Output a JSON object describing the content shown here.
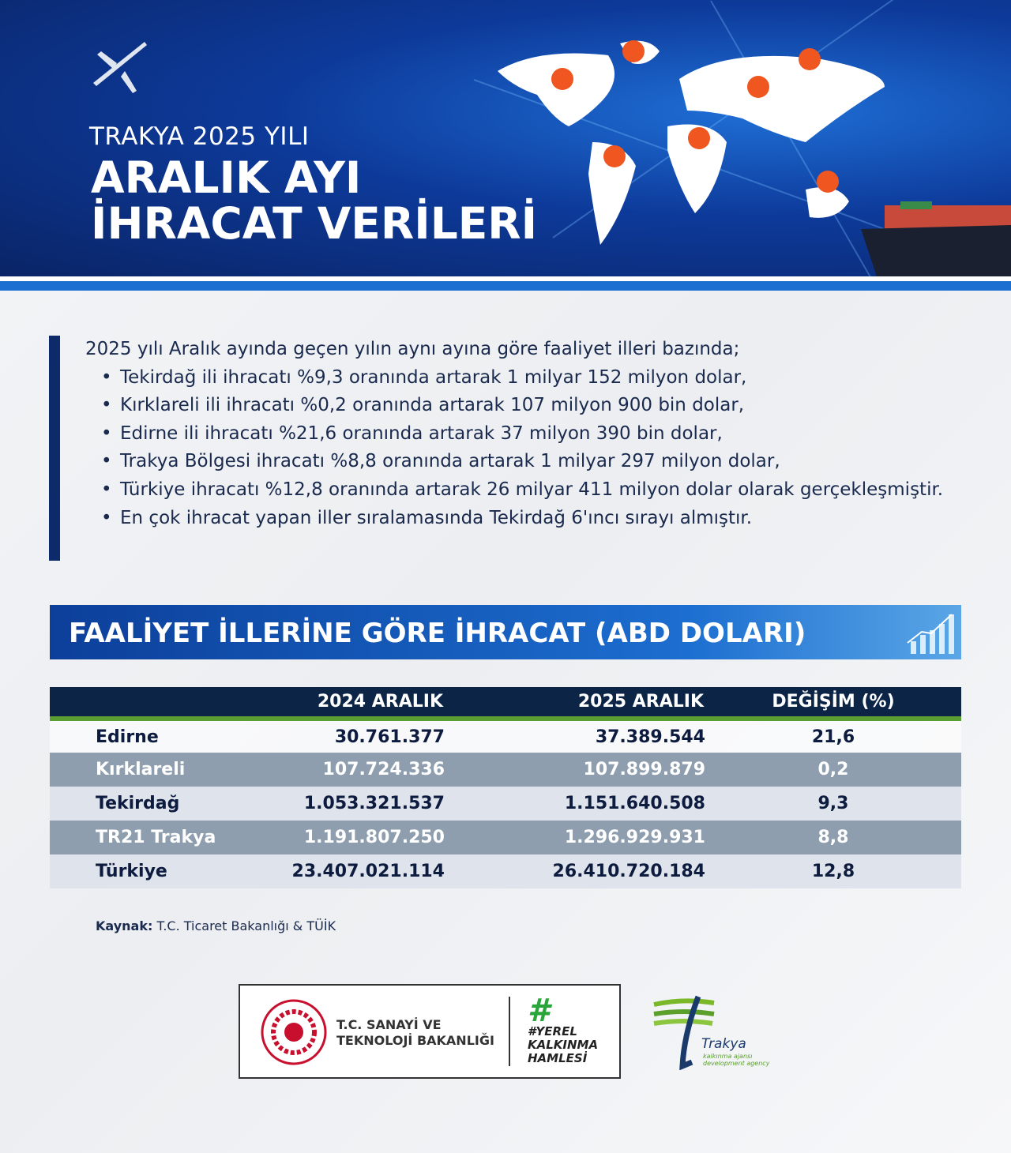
{
  "header": {
    "subtitle": "TRAKYA 2025 YILI",
    "title_line1": "ARALIK AYI",
    "title_line2": "İHRACAT VERİLERİ"
  },
  "intro": {
    "lead": "2025 yılı Aralık ayında geçen yılın aynı ayına göre faaliyet illeri bazında;",
    "bullets": [
      "Tekirdağ ili ihracatı %9,3 oranında artarak 1 milyar 152 milyon dolar,",
      "Kırklareli ili ihracatı %0,2 oranında artarak 107 milyon 900 bin dolar,",
      "Edirne ili ihracatı %21,6 oranında artarak 37 milyon 390 bin dolar,",
      "Trakya Bölgesi ihracatı %8,8 oranında artarak 1 milyar 297 milyon dolar,",
      "Türkiye ihracatı %12,8 oranında artarak 26 milyar 411 milyon dolar olarak gerçekleşmiştir.",
      "En çok ihracat yapan iller sıralamasında Tekirdağ 6'ıncı sırayı almıştır."
    ]
  },
  "section_title": "FAALİYET İLLERİNE GÖRE İHRACAT (ABD DOLARI)",
  "table": {
    "headers": [
      "",
      "2024 ARALIK",
      "2025 ARALIK",
      "DEĞİŞİM (%)"
    ],
    "rows": [
      [
        "Edirne",
        "30.761.377",
        "37.389.544",
        "21,6"
      ],
      [
        "Kırklareli",
        "107.724.336",
        "107.899.879",
        "0,2"
      ],
      [
        "Tekirdağ",
        "1.053.321.537",
        "1.151.640.508",
        "9,3"
      ],
      [
        "TR21 Trakya",
        "1.191.807.250",
        "1.296.929.931",
        "8,8"
      ],
      [
        "Türkiye",
        "23.407.021.114",
        "26.410.720.184",
        "12,8"
      ]
    ]
  },
  "source": {
    "label": "Kaynak:",
    "text": " T.C. Ticaret Bakanlığı & TÜİK"
  },
  "logos": {
    "ministry": "T.C. SANAYİ VE TEKNOLOJİ BAKANLIĞI",
    "ministry_l1": "T.C. SANAYİ VE",
    "ministry_l2": "TEKNOLOJİ BAKANLIĞI",
    "campaign": "#YEREL KALKINMA HAMLESİ",
    "agency": "Trakya",
    "agency_sub1": "kalkınma ajansı",
    "agency_sub2": "development agency"
  },
  "colors": {
    "navy": "#0c2547",
    "accent_blue": "#1b6fd1",
    "green": "#5a9e32",
    "pin": "#f0561f"
  }
}
